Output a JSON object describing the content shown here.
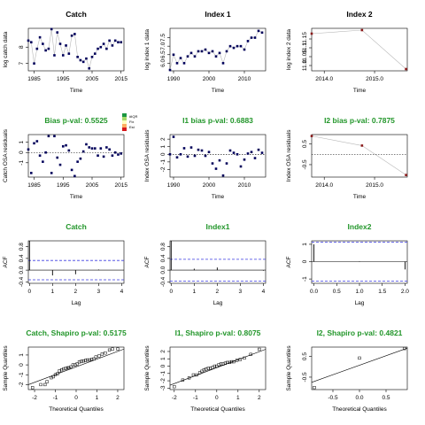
{
  "figure": {
    "legend_colors": [
      "#1a9641",
      "#a6d96a",
      "#ffffbf",
      "#fdae61",
      "#d7191c"
    ],
    "legend_labels": [
      "#IQR",
      "Fix",
      "Est"
    ],
    "green": "#22962a"
  },
  "chart_data": [
    {
      "id": "catch-series",
      "type": "scatter",
      "title": "Catch",
      "title_color": "black",
      "xlabel": "Time",
      "ylabel": "log catch data",
      "xlim": [
        1983,
        2016
      ],
      "ylim": [
        6.55,
        9.15
      ],
      "xticks": [
        1985,
        1995,
        2005,
        2015
      ],
      "yticks": [
        7.0,
        8.0
      ],
      "line": "gray",
      "point_color": "#00005a",
      "x": [
        1983,
        1984,
        1985,
        1986,
        1987,
        1988,
        1989,
        1990,
        1991,
        1992,
        1993,
        1994,
        1995,
        1996,
        1997,
        1998,
        1999,
        2000,
        2001,
        2002,
        2003,
        2004,
        2005,
        2006,
        2007,
        2008,
        2009,
        2010,
        2011,
        2012,
        2013,
        2014,
        2015
      ],
      "y": [
        8.4,
        8.3,
        7.0,
        7.9,
        8.6,
        8.2,
        7.8,
        7.9,
        9.1,
        7.5,
        8.9,
        8.2,
        7.5,
        8.1,
        7.6,
        8.7,
        8.8,
        7.4,
        7.2,
        7.1,
        7.3,
        6.7,
        7.4,
        7.6,
        7.9,
        8.0,
        8.2,
        7.9,
        8.4,
        8.1,
        8.4,
        8.3,
        8.3
      ]
    },
    {
      "id": "index1-series",
      "type": "scatter",
      "title": "Index 1",
      "title_color": "black",
      "xlabel": "Time",
      "ylabel": "log index 1 data",
      "xlim": [
        1989,
        2016
      ],
      "ylim": [
        5.55,
        8.05
      ],
      "xticks": [
        1990,
        2000,
        2010
      ],
      "yticks": [
        6.0,
        6.5,
        7.0,
        7.5
      ],
      "line": "gray",
      "point_color": "#00005a",
      "x": [
        1989,
        1990,
        1991,
        1992,
        1993,
        1994,
        1995,
        1996,
        1997,
        1998,
        1999,
        2000,
        2001,
        2002,
        2003,
        2004,
        2005,
        2006,
        2007,
        2008,
        2009,
        2010,
        2011,
        2012,
        2013,
        2014,
        2015
      ],
      "y": [
        5.6,
        6.5,
        6.0,
        6.3,
        6.0,
        6.4,
        6.6,
        6.4,
        6.7,
        6.7,
        6.8,
        6.6,
        6.7,
        6.4,
        6.6,
        6.0,
        6.7,
        7.0,
        6.9,
        7.0,
        7.0,
        6.8,
        7.3,
        7.5,
        7.5,
        7.9,
        7.8
      ]
    },
    {
      "id": "index2-series",
      "type": "scatter",
      "title": "Index 2",
      "title_color": "black",
      "xlabel": "Time",
      "ylabel": "log index 2 data",
      "xlim": [
        2013.75,
        2015.65
      ],
      "ylim": [
        10.97,
        11.21
      ],
      "xticks": [
        2014.0,
        2015.0
      ],
      "xtick_labels": [
        "2014.0",
        "2015.0"
      ],
      "yticks": [
        11.0,
        11.05,
        11.1,
        11.15
      ],
      "line": "gray",
      "point_color": "#8b1a1a",
      "x": [
        2013.75,
        2014.75,
        2015.625
      ],
      "y": [
        11.18,
        11.2,
        10.98
      ]
    },
    {
      "id": "catch-osa",
      "type": "scatter",
      "title": "Bias p-val: 0.5525",
      "title_color": "green",
      "xlabel": "Time",
      "ylabel": "Catch OSA residuals",
      "xlim": [
        1983,
        2016
      ],
      "ylim": [
        -2.4,
        1.75
      ],
      "xticks": [
        1985,
        1995,
        2005,
        2015
      ],
      "yticks": [
        -1,
        0,
        1
      ],
      "zero_line": true,
      "point_color": "#00005a",
      "x": [
        1983,
        1984,
        1985,
        1986,
        1987,
        1988,
        1989,
        1990,
        1991,
        1992,
        1993,
        1994,
        1995,
        1996,
        1997,
        1998,
        1999,
        2000,
        2001,
        2002,
        2003,
        2004,
        2005,
        2006,
        2007,
        2008,
        2009,
        2010,
        2011,
        2012,
        2013,
        2014,
        2015
      ],
      "y": [
        0.3,
        -2.0,
        0.9,
        1.1,
        -0.3,
        -0.9,
        0.0,
        1.6,
        -2.0,
        1.6,
        -0.5,
        -1.2,
        0.6,
        0.7,
        0.2,
        -1.7,
        -2.3,
        -0.9,
        -0.6,
        0.1,
        0.8,
        0.5,
        0.4,
        0.4,
        -0.3,
        0.4,
        -0.4,
        0.5,
        0.3,
        -0.3,
        0.0,
        -0.2,
        -0.1
      ]
    },
    {
      "id": "index1-osa",
      "type": "scatter",
      "title": "I1 bias p-val: 0.6883",
      "title_color": "green",
      "xlabel": "Time",
      "ylabel": "Index OSA residuals",
      "xlim": [
        1989,
        2016
      ],
      "ylim": [
        -3.0,
        2.6
      ],
      "xticks": [
        1990,
        2000,
        2010
      ],
      "yticks": [
        -2,
        -1,
        0,
        1,
        2
      ],
      "zero_line": true,
      "point_color": "#00005a",
      "x": [
        1989,
        1990,
        1991,
        1992,
        1993,
        1994,
        1995,
        1996,
        1997,
        1998,
        1999,
        2000,
        2001,
        2002,
        2003,
        2004,
        2005,
        2006,
        2007,
        2008,
        2009,
        2010,
        2011,
        2012,
        2013,
        2014,
        2015
      ],
      "y": [
        0.0,
        2.3,
        -0.4,
        0.0,
        0.8,
        -0.3,
        0.9,
        -0.2,
        0.6,
        0.5,
        -0.2,
        0.3,
        -1.2,
        -1.9,
        -0.8,
        -2.8,
        -1.2,
        0.5,
        0.2,
        0.0,
        -1.6,
        -0.7,
        0.1,
        0.3,
        -0.5,
        0.6,
        0.2
      ]
    },
    {
      "id": "index2-osa",
      "type": "scatter",
      "title": "I2 bias p-val: 0.7875",
      "title_color": "green",
      "xlabel": "Time",
      "ylabel": "Index OSA residuals",
      "xlim": [
        2013.75,
        2015.65
      ],
      "ylim": [
        -1.1,
        0.95
      ],
      "xticks": [
        2014.0,
        2015.0
      ],
      "xtick_labels": [
        "2014.0",
        "2015.0"
      ],
      "yticks": [
        -0.5,
        0.5
      ],
      "zero_line": true,
      "line": "gray",
      "point_color": "#8b1a1a",
      "x": [
        2013.75,
        2014.75,
        2015.625
      ],
      "y": [
        0.88,
        0.42,
        -1.0
      ]
    },
    {
      "id": "catch-acf",
      "type": "bar",
      "title": "Catch",
      "title_color": "green",
      "xlabel": "Lag",
      "ylabel": "ACF",
      "xlim": [
        -0.05,
        4.1
      ],
      "ylim": [
        -0.45,
        1.0
      ],
      "xticks": [
        0,
        1,
        2,
        3,
        4
      ],
      "yticks": [
        -0.4,
        0.0,
        0.4,
        0.8
      ],
      "ci": 0.33,
      "lags": [
        0,
        1,
        2,
        3,
        4
      ],
      "values": [
        1.0,
        -0.18,
        -0.14,
        0.02,
        0.0
      ]
    },
    {
      "id": "index1-acf",
      "type": "bar",
      "title": "Index1",
      "title_color": "green",
      "xlabel": "Lag",
      "ylabel": "ACF",
      "xlim": [
        -0.05,
        4.1
      ],
      "ylim": [
        -0.45,
        1.0
      ],
      "xticks": [
        0,
        1,
        2,
        3,
        4
      ],
      "yticks": [
        -0.4,
        0.0,
        0.4,
        0.8
      ],
      "ci": 0.37,
      "lags": [
        0,
        1,
        2,
        3,
        4
      ],
      "values": [
        1.0,
        0.05,
        0.09,
        0.0,
        -0.02
      ]
    },
    {
      "id": "index2-acf",
      "type": "bar",
      "title": "Index2",
      "title_color": "green",
      "xlabel": "Lag",
      "ylabel": "ACF",
      "xlim": [
        -0.05,
        2.05
      ],
      "ylim": [
        -1.25,
        1.2
      ],
      "xticks": [
        0.0,
        0.5,
        1.0,
        1.5,
        2.0
      ],
      "xtick_labels": [
        "0.0",
        "0.5",
        "1.0",
        "1.5",
        "2.0"
      ],
      "yticks": [
        -1.0,
        0.0,
        1.0
      ],
      "ci": 1.13,
      "lags": [
        0,
        1,
        2
      ],
      "values": [
        1.0,
        -0.02,
        -0.45
      ]
    },
    {
      "id": "catch-qq",
      "type": "scatter",
      "title": "Catch, Shapiro p-val: 0.5175",
      "title_color": "green",
      "xlabel": "Theoretical Quantiles",
      "ylabel": "Sample Quantiles",
      "xlim": [
        -2.3,
        2.3
      ],
      "ylim": [
        -2.5,
        1.8
      ],
      "xticks": [
        -2,
        -1,
        0,
        1,
        2
      ],
      "yticks": [
        -2,
        -1,
        0,
        1
      ],
      "open_points": true,
      "ref_line": [
        -2.3,
        -2.0,
        2.3,
        1.6
      ],
      "x": [
        -2.1,
        -1.7,
        -1.5,
        -1.4,
        -1.2,
        -1.1,
        -1.0,
        -0.9,
        -0.8,
        -0.7,
        -0.6,
        -0.5,
        -0.4,
        -0.35,
        -0.25,
        -0.15,
        -0.05,
        0.05,
        0.15,
        0.25,
        0.35,
        0.45,
        0.55,
        0.65,
        0.75,
        0.85,
        0.95,
        1.1,
        1.25,
        1.4,
        1.6,
        1.75,
        2.0
      ],
      "y": [
        -2.3,
        -2.0,
        -2.0,
        -1.7,
        -1.3,
        -1.2,
        -1.0,
        -0.9,
        -0.6,
        -0.5,
        -0.4,
        -0.35,
        -0.3,
        -0.3,
        -0.2,
        0.0,
        0.0,
        0.1,
        0.3,
        0.35,
        0.4,
        0.45,
        0.5,
        0.5,
        0.55,
        0.6,
        0.8,
        0.9,
        1.1,
        1.2,
        1.5,
        1.6,
        1.6
      ]
    },
    {
      "id": "index1-qq",
      "type": "scatter",
      "title": "I1, Shapiro p-val: 0.8075",
      "title_color": "green",
      "xlabel": "Theoretical Quantiles",
      "ylabel": "Sample Quantiles",
      "xlim": [
        -2.2,
        2.3
      ],
      "ylim": [
        -3.2,
        2.6
      ],
      "xticks": [
        -2,
        -1,
        0,
        1,
        2
      ],
      "yticks": [
        -3,
        -2,
        -1,
        0,
        1,
        2
      ],
      "open_points": true,
      "ref_line": [
        -2.2,
        -2.6,
        2.3,
        2.3
      ],
      "x": [
        -2.0,
        -1.6,
        -1.3,
        -1.1,
        -0.95,
        -0.8,
        -0.7,
        -0.6,
        -0.5,
        -0.4,
        -0.3,
        -0.2,
        -0.1,
        0.0,
        0.1,
        0.2,
        0.3,
        0.4,
        0.5,
        0.6,
        0.7,
        0.8,
        0.95,
        1.1,
        1.3,
        1.6,
        2.0
      ],
      "y": [
        -2.8,
        -1.9,
        -1.6,
        -1.2,
        -1.2,
        -0.9,
        -0.7,
        -0.5,
        -0.4,
        -0.3,
        -0.3,
        -0.2,
        0.0,
        0.0,
        0.2,
        0.3,
        0.3,
        0.4,
        0.5,
        0.5,
        0.6,
        0.6,
        0.8,
        0.9,
        1.1,
        1.6,
        2.3
      ]
    },
    {
      "id": "index2-qq",
      "type": "scatter",
      "title": "I2, Shapiro p-val: 0.4821",
      "title_color": "green",
      "xlabel": "Theoretical Quantiles",
      "ylabel": "Sample Quantiles",
      "xlim": [
        -0.9,
        0.9
      ],
      "ylim": [
        -1.1,
        0.95
      ],
      "xticks": [
        -0.5,
        0.0,
        0.5
      ],
      "xtick_labels": [
        "-0.5",
        "0.0",
        "0.5"
      ],
      "yticks": [
        -0.5,
        0.5
      ],
      "open_points": true,
      "ref_line": [
        -0.9,
        -0.75,
        0.9,
        0.9
      ],
      "x": [
        -0.85,
        0.0,
        0.85
      ],
      "y": [
        -1.0,
        0.42,
        0.88
      ]
    }
  ]
}
